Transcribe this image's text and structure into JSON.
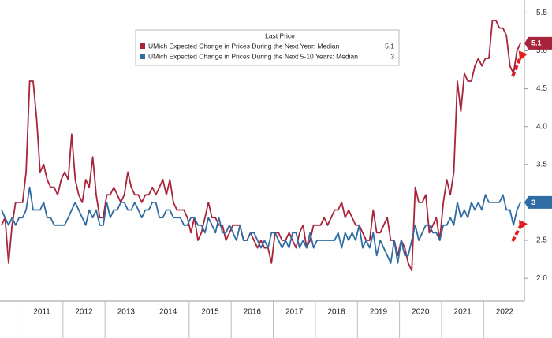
{
  "chart_data": {
    "type": "line",
    "legend_title": "Last Price",
    "categories": [
      null,
      null,
      null,
      null,
      null,
      null,
      null,
      null,
      null,
      null,
      null,
      null,
      "2011",
      null,
      null,
      null,
      null,
      null,
      null,
      null,
      null,
      null,
      null,
      null,
      "2012",
      null,
      null,
      null,
      null,
      null,
      null,
      null,
      null,
      null,
      null,
      null,
      "2013",
      null,
      null,
      null,
      null,
      null,
      null,
      null,
      null,
      null,
      null,
      null,
      "2014",
      null,
      null,
      null,
      null,
      null,
      null,
      null,
      null,
      null,
      null,
      null,
      "2015",
      null,
      null,
      null,
      null,
      null,
      null,
      null,
      null,
      null,
      null,
      null,
      "2016",
      null,
      null,
      null,
      null,
      null,
      null,
      null,
      null,
      null,
      null,
      null,
      "2017",
      null,
      null,
      null,
      null,
      null,
      null,
      null,
      null,
      null,
      null,
      null,
      "2018",
      null,
      null,
      null,
      null,
      null,
      null,
      null,
      null,
      null,
      null,
      null,
      "2019",
      null,
      null,
      null,
      null,
      null,
      null,
      null,
      null,
      null,
      null,
      null,
      "2020",
      null,
      null,
      null,
      null,
      null,
      null,
      null,
      null,
      null,
      null,
      null,
      "2021",
      null,
      null,
      null,
      null,
      null,
      null,
      null,
      null,
      null,
      null,
      null,
      "2022",
      null,
      null,
      null,
      null
    ],
    "series": [
      {
        "name": "UMich Expected Change in Prices During the Next Year: Median",
        "color": "#a8243a",
        "values": [
          2.7,
          2.8,
          2.2,
          2.7,
          3.0,
          3.0,
          3.0,
          3.4,
          4.6,
          4.6,
          4.1,
          3.4,
          3.5,
          3.3,
          3.2,
          3.2,
          3.1,
          3.3,
          3.4,
          3.3,
          3.9,
          3.3,
          3.1,
          3.0,
          3.3,
          3.2,
          3.6,
          3.1,
          2.8,
          2.8,
          3.1,
          3.1,
          3.2,
          3.1,
          3.0,
          3.1,
          3.4,
          3.2,
          3.1,
          3.1,
          3.0,
          3.1,
          3.1,
          3.2,
          3.1,
          3.2,
          3.3,
          3.1,
          3.3,
          3.0,
          2.9,
          2.9,
          2.9,
          2.8,
          2.6,
          2.8,
          2.5,
          2.6,
          2.8,
          3.0,
          2.8,
          2.8,
          2.7,
          2.7,
          2.5,
          2.6,
          2.7,
          2.7,
          2.7,
          2.5,
          2.5,
          2.6,
          2.5,
          2.4,
          2.5,
          2.4,
          2.4,
          2.2,
          2.6,
          2.6,
          2.5,
          2.5,
          2.6,
          2.5,
          2.4,
          2.6,
          2.7,
          2.4,
          2.5,
          2.7,
          2.7,
          2.7,
          2.8,
          2.7,
          2.8,
          2.9,
          2.9,
          3.0,
          2.8,
          2.9,
          2.8,
          2.7,
          2.7,
          2.6,
          2.5,
          2.5,
          2.9,
          2.6,
          2.6,
          2.7,
          2.8,
          2.5,
          2.5,
          2.3,
          2.5,
          2.4,
          2.2,
          2.1,
          3.2,
          3.0,
          3.0,
          3.1,
          2.6,
          2.7,
          2.8,
          2.5,
          3.0,
          3.3,
          3.1,
          3.4,
          4.6,
          4.2,
          4.7,
          4.6,
          4.6,
          4.8,
          4.9,
          4.8,
          4.9,
          4.9,
          5.4,
          5.4,
          5.3,
          5.3,
          5.2,
          4.8,
          4.7,
          5.0,
          5.1
        ]
      },
      {
        "name": "UMich Expected Change in Prices During the Next 5-10 Years: Median",
        "color": "#2f6ca3",
        "values": [
          2.9,
          2.8,
          2.7,
          2.8,
          2.7,
          2.8,
          2.8,
          2.9,
          3.2,
          2.9,
          2.9,
          2.9,
          3.0,
          2.8,
          2.8,
          2.7,
          2.7,
          2.7,
          2.7,
          2.8,
          2.9,
          3.0,
          2.9,
          2.8,
          2.7,
          2.9,
          2.8,
          2.9,
          2.7,
          2.7,
          3.0,
          2.8,
          2.9,
          2.9,
          3.0,
          3.0,
          2.9,
          2.9,
          3.0,
          2.9,
          2.8,
          2.9,
          2.9,
          3.0,
          3.0,
          2.8,
          2.8,
          2.9,
          2.9,
          2.8,
          2.8,
          2.8,
          2.7,
          2.7,
          2.8,
          2.8,
          2.7,
          2.7,
          2.6,
          2.8,
          2.7,
          2.6,
          2.8,
          2.6,
          2.6,
          2.7,
          2.6,
          2.5,
          2.7,
          2.5,
          2.5,
          2.6,
          2.6,
          2.5,
          2.4,
          2.5,
          2.4,
          2.6,
          2.6,
          2.5,
          2.4,
          2.5,
          2.4,
          2.6,
          2.6,
          2.4,
          2.5,
          2.4,
          2.6,
          2.4,
          2.5,
          2.5,
          2.5,
          2.5,
          2.5,
          2.5,
          2.6,
          2.4,
          2.6,
          2.5,
          2.6,
          2.5,
          2.7,
          2.4,
          2.5,
          2.4,
          2.6,
          2.3,
          2.5,
          2.4,
          2.3,
          2.2,
          2.5,
          2.2,
          2.5,
          2.3,
          2.3,
          2.5,
          2.7,
          2.5,
          2.6,
          2.7,
          2.7,
          2.6,
          2.6,
          2.5,
          2.7,
          2.7,
          2.8,
          2.7,
          3.0,
          2.8,
          2.9,
          2.8,
          3.0,
          2.9,
          3.0,
          2.9,
          3.1,
          3.0,
          3.0,
          3.0,
          3.0,
          3.1,
          2.9,
          2.9,
          2.7,
          2.9,
          3.0
        ]
      }
    ],
    "ylim": [
      1.7,
      5.67
    ],
    "yticks": [
      {
        "value": 2,
        "label": "2.0"
      },
      {
        "value": 2.5,
        "label": "2.5"
      },
      {
        "value": 3,
        "label": "3.0"
      },
      {
        "value": 3.5,
        "label": "3.5"
      },
      {
        "value": 4,
        "label": "4.0"
      },
      {
        "value": 4.5,
        "label": "4.5"
      },
      {
        "value": 5,
        "label": "5.0"
      },
      {
        "value": 5.5,
        "label": "5.5"
      }
    ],
    "grid": false
  }
}
